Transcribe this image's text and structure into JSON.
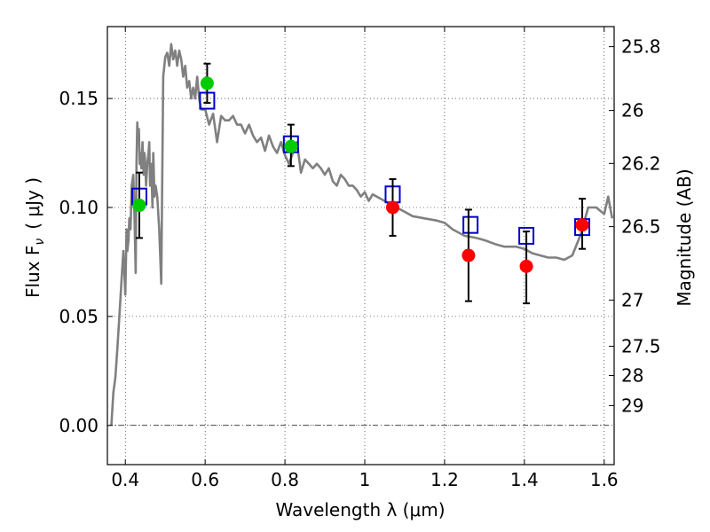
{
  "chart_data": {
    "type": "scatter",
    "xlabel": "Wavelength  λ (μm)",
    "ylabel": "Flux  F",
    "ylabel_sub": "ν",
    "ylabel_units": "( μJy )",
    "ylabel_right": "Magnitude (AB)",
    "xlim": [
      0.355,
      1.625
    ],
    "ylim": [
      -0.018,
      0.183
    ],
    "grid": true,
    "x_ticks": [
      {
        "v": 0.4,
        "label": "0.4"
      },
      {
        "v": 0.6,
        "label": "0.6"
      },
      {
        "v": 0.8,
        "label": "0.8"
      },
      {
        "v": 1.0,
        "label": "1"
      },
      {
        "v": 1.2,
        "label": "1.2"
      },
      {
        "v": 1.4,
        "label": "1.4"
      },
      {
        "v": 1.6,
        "label": "1.6"
      }
    ],
    "y_ticks": [
      {
        "v": 0.0,
        "label": "0.00"
      },
      {
        "v": 0.05,
        "label": "0.05"
      },
      {
        "v": 0.1,
        "label": "0.10"
      },
      {
        "v": 0.15,
        "label": "0.15"
      }
    ],
    "right_ticks": [
      {
        "flux": 0.1738,
        "label": "25.8"
      },
      {
        "flux": 0.1445,
        "label": "26"
      },
      {
        "flux": 0.1202,
        "label": "26.2"
      },
      {
        "flux": 0.0912,
        "label": "26.5"
      },
      {
        "flux": 0.0575,
        "label": "27"
      },
      {
        "flux": 0.0363,
        "label": "27.5"
      },
      {
        "flux": 0.0229,
        "label": "28"
      },
      {
        "flux": 0.0091,
        "label": "29"
      }
    ],
    "model_spectrum": {
      "color": "#808080",
      "x": [
        0.365,
        0.37,
        0.375,
        0.38,
        0.385,
        0.39,
        0.395,
        0.4,
        0.403,
        0.405,
        0.408,
        0.41,
        0.413,
        0.416,
        0.42,
        0.423,
        0.426,
        0.428,
        0.43,
        0.432,
        0.434,
        0.436,
        0.438,
        0.44,
        0.443,
        0.446,
        0.448,
        0.45,
        0.452,
        0.455,
        0.458,
        0.46,
        0.462,
        0.465,
        0.468,
        0.47,
        0.473,
        0.476,
        0.48,
        0.485,
        0.49,
        0.495,
        0.5,
        0.505,
        0.51,
        0.515,
        0.52,
        0.525,
        0.53,
        0.535,
        0.54,
        0.545,
        0.55,
        0.555,
        0.56,
        0.565,
        0.57,
        0.575,
        0.58,
        0.585,
        0.59,
        0.6,
        0.61,
        0.62,
        0.63,
        0.64,
        0.65,
        0.66,
        0.67,
        0.68,
        0.69,
        0.7,
        0.71,
        0.72,
        0.73,
        0.74,
        0.75,
        0.76,
        0.77,
        0.78,
        0.79,
        0.8,
        0.81,
        0.82,
        0.83,
        0.84,
        0.85,
        0.86,
        0.87,
        0.88,
        0.89,
        0.9,
        0.91,
        0.92,
        0.93,
        0.94,
        0.95,
        0.96,
        0.97,
        0.98,
        0.99,
        1.0,
        1.01,
        1.02,
        1.03,
        1.04,
        1.06,
        1.08,
        1.1,
        1.12,
        1.15,
        1.18,
        1.2,
        1.22,
        1.25,
        1.28,
        1.3,
        1.33,
        1.35,
        1.38,
        1.4,
        1.42,
        1.44,
        1.46,
        1.48,
        1.5,
        1.52,
        1.54,
        1.56,
        1.58,
        1.6,
        1.61,
        1.62
      ],
      "y": [
        0.0,
        0.015,
        0.022,
        0.035,
        0.05,
        0.065,
        0.08,
        0.06,
        0.09,
        0.08,
        0.085,
        0.095,
        0.09,
        0.11,
        0.115,
        0.095,
        0.07,
        0.12,
        0.139,
        0.13,
        0.136,
        0.12,
        0.125,
        0.118,
        0.13,
        0.115,
        0.125,
        0.12,
        0.11,
        0.12,
        0.125,
        0.13,
        0.11,
        0.12,
        0.1,
        0.125,
        0.105,
        0.11,
        0.105,
        0.09,
        0.065,
        0.16,
        0.169,
        0.171,
        0.165,
        0.175,
        0.168,
        0.172,
        0.165,
        0.172,
        0.168,
        0.16,
        0.165,
        0.155,
        0.158,
        0.15,
        0.155,
        0.15,
        0.16,
        0.15,
        0.145,
        0.145,
        0.138,
        0.143,
        0.13,
        0.142,
        0.14,
        0.14,
        0.142,
        0.138,
        0.138,
        0.134,
        0.138,
        0.133,
        0.13,
        0.132,
        0.126,
        0.133,
        0.128,
        0.125,
        0.13,
        0.124,
        0.12,
        0.125,
        0.13,
        0.116,
        0.122,
        0.12,
        0.118,
        0.12,
        0.118,
        0.115,
        0.118,
        0.112,
        0.11,
        0.115,
        0.113,
        0.11,
        0.11,
        0.108,
        0.105,
        0.107,
        0.103,
        0.106,
        0.105,
        0.104,
        0.102,
        0.1,
        0.098,
        0.096,
        0.095,
        0.094,
        0.093,
        0.09,
        0.087,
        0.086,
        0.085,
        0.083,
        0.082,
        0.082,
        0.081,
        0.079,
        0.078,
        0.077,
        0.077,
        0.076,
        0.078,
        0.087,
        0.1,
        0.1,
        0.097,
        0.105,
        0.095
      ]
    },
    "model_points": {
      "color": "#0000cc",
      "marker": "open-square",
      "points": [
        {
          "x": 0.435,
          "y": 0.105
        },
        {
          "x": 0.605,
          "y": 0.149
        },
        {
          "x": 0.815,
          "y": 0.129
        },
        {
          "x": 1.07,
          "y": 0.106
        },
        {
          "x": 1.265,
          "y": 0.092
        },
        {
          "x": 1.405,
          "y": 0.087
        },
        {
          "x": 1.545,
          "y": 0.091
        }
      ]
    },
    "observed": {
      "marker": "filled-circle",
      "points": [
        {
          "x": 0.435,
          "y": 0.101,
          "ylo": 0.086,
          "yhi": 0.116,
          "color": "#00cc00"
        },
        {
          "x": 0.605,
          "y": 0.157,
          "ylo": 0.148,
          "yhi": 0.166,
          "color": "#00cc00"
        },
        {
          "x": 0.815,
          "y": 0.128,
          "ylo": 0.119,
          "yhi": 0.138,
          "color": "#00cc00"
        },
        {
          "x": 1.07,
          "y": 0.1,
          "ylo": 0.087,
          "yhi": 0.113,
          "color": "#ff0000"
        },
        {
          "x": 1.26,
          "y": 0.078,
          "ylo": 0.057,
          "yhi": 0.099,
          "color": "#ff0000"
        },
        {
          "x": 1.405,
          "y": 0.073,
          "ylo": 0.056,
          "yhi": 0.089,
          "color": "#ff0000"
        },
        {
          "x": 1.545,
          "y": 0.092,
          "ylo": 0.081,
          "yhi": 0.104,
          "color": "#ff0000"
        }
      ]
    },
    "zero_line": {
      "y": 0.0,
      "style": "dash-dot"
    }
  }
}
